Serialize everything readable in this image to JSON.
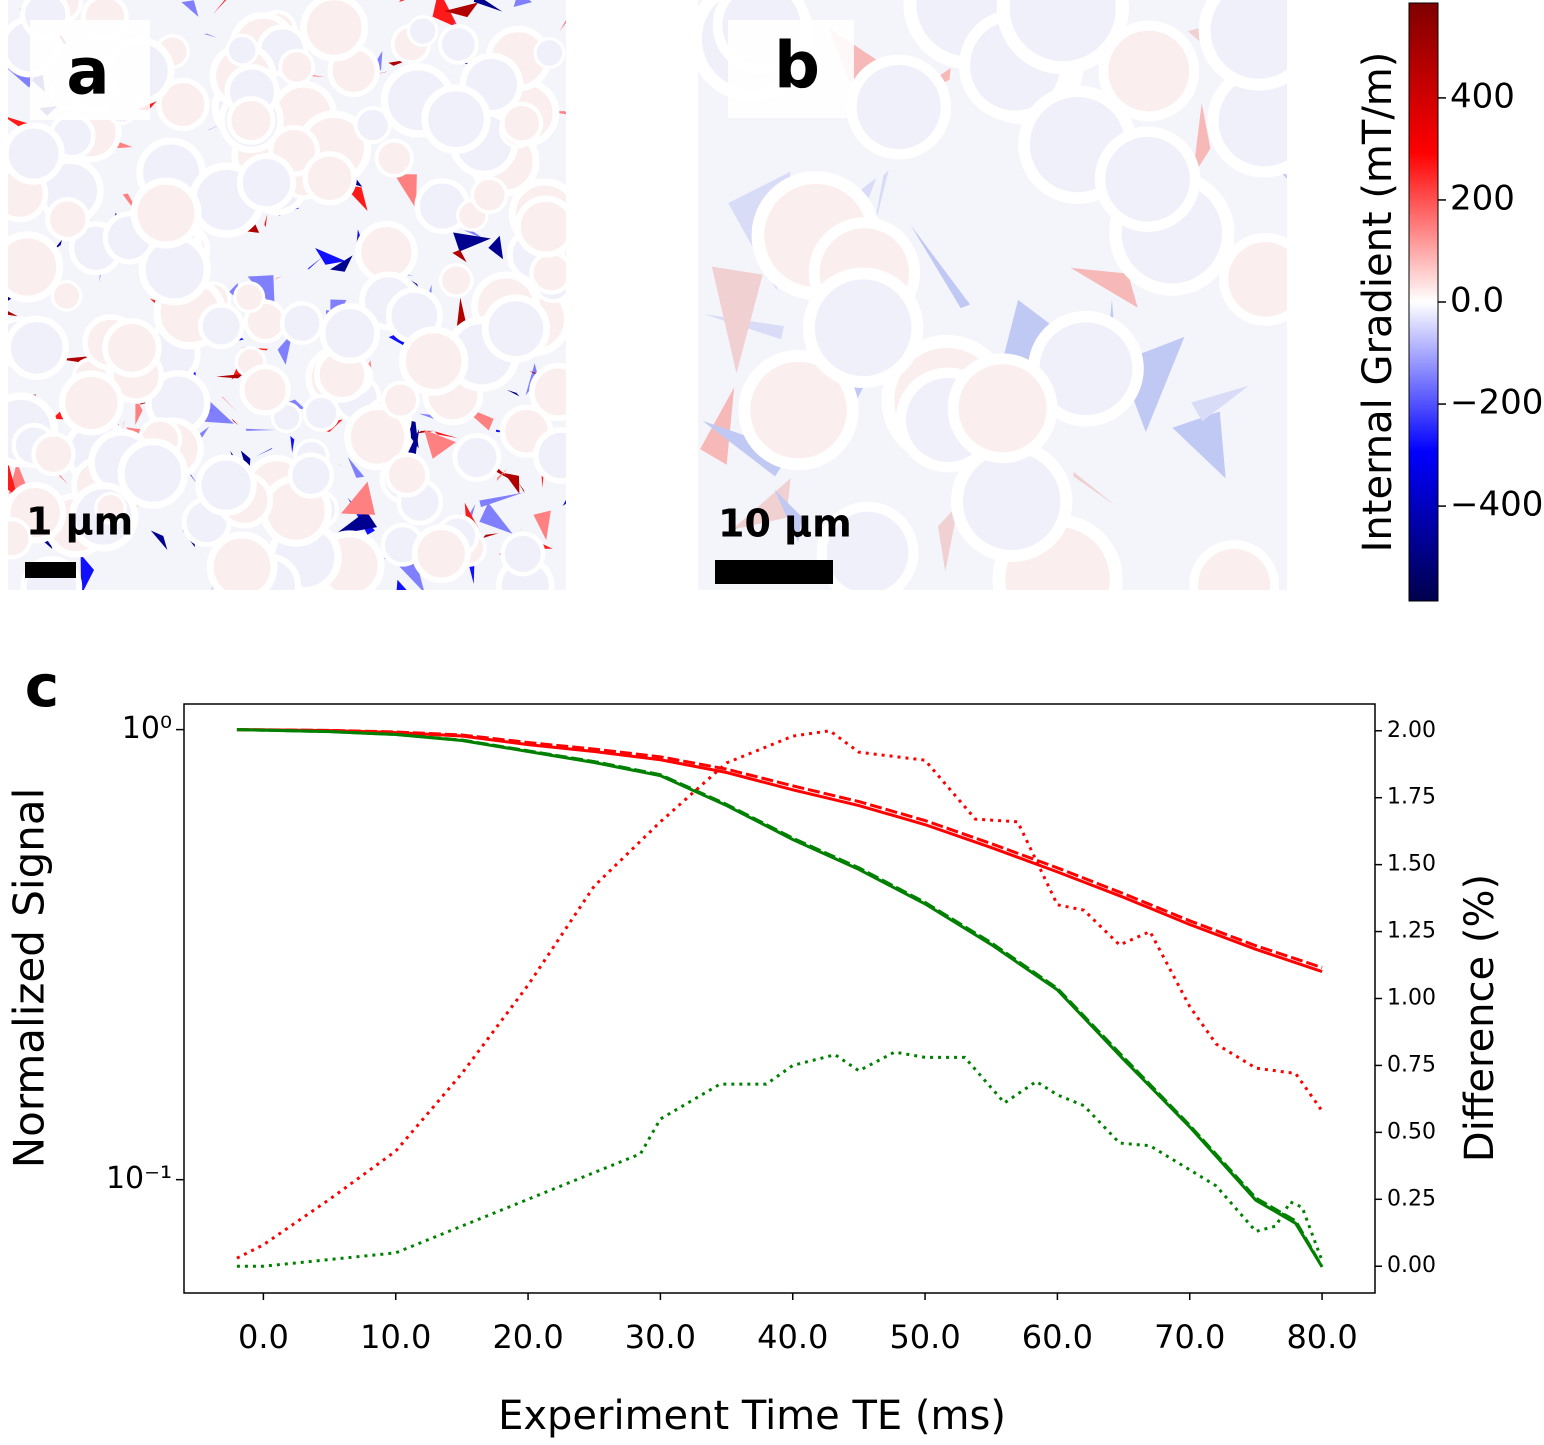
{
  "panels": [
    {
      "label": "a",
      "scale": "1 µm"
    },
    {
      "label": "b",
      "scale": "10 µm"
    }
  ],
  "colorbar": {
    "label": "Internal Gradient (mT/m)",
    "clim": [
      -586,
      586
    ],
    "ticks": [
      {
        "value": 400,
        "label": "400"
      },
      {
        "value": 200,
        "label": "200"
      },
      {
        "value": 0,
        "label": "0.0"
      },
      {
        "value": -200,
        "label": "−200"
      },
      {
        "value": -400,
        "label": "−400"
      }
    ]
  },
  "chart_data": {
    "type": "line",
    "panel_label": "c",
    "xlabel": "Experiment Time TE (ms)",
    "ylabel": "Normalized Signal",
    "y2label": "Difference (%)",
    "xlim": [
      -6,
      84
    ],
    "ylim": [
      0.056,
      1.14
    ],
    "y2lim": [
      -0.1,
      2.1
    ],
    "log_y": true,
    "xticks": [
      {
        "value": 0,
        "label": "0.0"
      },
      {
        "value": 10,
        "label": "10.0"
      },
      {
        "value": 20,
        "label": "20.0"
      },
      {
        "value": 30,
        "label": "30.0"
      },
      {
        "value": 40,
        "label": "40.0"
      },
      {
        "value": 50,
        "label": "50.0"
      },
      {
        "value": 60,
        "label": "60.0"
      },
      {
        "value": 70,
        "label": "70.0"
      },
      {
        "value": 80,
        "label": "80.0"
      }
    ],
    "yticks": [
      {
        "value": 1,
        "label": "10⁰"
      },
      {
        "value": 0.1,
        "label": "10⁻¹"
      }
    ],
    "y2ticks": [
      {
        "value": 0,
        "label": "0.00"
      },
      {
        "value": 0.25,
        "label": "0.25"
      },
      {
        "value": 0.5,
        "label": "0.50"
      },
      {
        "value": 0.75,
        "label": "0.75"
      },
      {
        "value": 1,
        "label": "1.00"
      },
      {
        "value": 1.25,
        "label": "1.25"
      },
      {
        "value": 1.5,
        "label": "1.50"
      },
      {
        "value": 1.75,
        "label": "1.75"
      },
      {
        "value": 2,
        "label": "2.00"
      }
    ],
    "series": [
      {
        "color": "#ff0000",
        "dash": "solid",
        "x": [
          -2,
          5,
          10,
          15,
          20,
          25,
          30,
          35,
          40,
          45,
          50,
          55,
          60,
          65,
          70,
          75,
          80
        ],
        "values": [
          1.0,
          0.995,
          0.985,
          0.968,
          0.926,
          0.894,
          0.857,
          0.803,
          0.735,
          0.678,
          0.615,
          0.547,
          0.483,
          0.424,
          0.369,
          0.325,
          0.29
        ]
      },
      {
        "color": "#ff0000",
        "dash": "dashed",
        "x": [
          -2,
          5,
          10,
          15,
          20,
          25,
          30,
          35,
          40,
          45,
          50,
          55,
          60,
          65,
          70,
          75,
          80
        ],
        "values": [
          1.0,
          0.996,
          0.988,
          0.973,
          0.936,
          0.905,
          0.87,
          0.817,
          0.75,
          0.692,
          0.628,
          0.558,
          0.493,
          0.432,
          0.376,
          0.331,
          0.296
        ]
      },
      {
        "color": "#008000",
        "dash": "solid",
        "x": [
          -2,
          5,
          10,
          15,
          20,
          25,
          30,
          35,
          40,
          45,
          50,
          55,
          60,
          65,
          70,
          75,
          78,
          80
        ],
        "values": [
          1.0,
          0.99,
          0.975,
          0.946,
          0.894,
          0.845,
          0.79,
          0.678,
          0.57,
          0.489,
          0.41,
          0.333,
          0.264,
          0.185,
          0.131,
          0.09,
          0.08,
          0.064
        ]
      },
      {
        "color": "#008000",
        "dash": "dashed",
        "x": [
          -2,
          5,
          10,
          15,
          20,
          25,
          30,
          35,
          40,
          45,
          50,
          55,
          60,
          65,
          70,
          75,
          78,
          80
        ],
        "values": [
          1.0,
          0.99,
          0.976,
          0.948,
          0.897,
          0.849,
          0.794,
          0.682,
          0.574,
          0.493,
          0.413,
          0.336,
          0.266,
          0.187,
          0.132,
          0.091,
          0.081,
          0.064
        ]
      },
      {
        "color": "#ff0000",
        "dash": "dotted",
        "axis": "y2",
        "x": [
          -2,
          0,
          5,
          10,
          15,
          20,
          25,
          30,
          35,
          40,
          42.8,
          45,
          50,
          53.8,
          57,
          60,
          62,
          64.7,
          67,
          70,
          72,
          75,
          78,
          80
        ],
        "values": [
          0.03,
          0.08,
          0.25,
          0.43,
          0.72,
          1.05,
          1.42,
          1.66,
          1.88,
          1.98,
          2.0,
          1.92,
          1.89,
          1.67,
          1.66,
          1.35,
          1.33,
          1.2,
          1.25,
          0.97,
          0.83,
          0.74,
          0.72,
          0.58
        ]
      },
      {
        "color": "#008000",
        "dash": "dotted",
        "axis": "y2",
        "x": [
          -2,
          0,
          10,
          15,
          20,
          25,
          28.5,
          30,
          34.5,
          38,
          40,
          43.2,
          45,
          47.7,
          50,
          53,
          56,
          58.4,
          60,
          62,
          64.7,
          67,
          70,
          72,
          75,
          76.5,
          77.6,
          78.5,
          80
        ],
        "values": [
          0.0,
          0.0,
          0.05,
          0.15,
          0.25,
          0.35,
          0.42,
          0.55,
          0.68,
          0.68,
          0.75,
          0.79,
          0.73,
          0.8,
          0.78,
          0.78,
          0.61,
          0.69,
          0.64,
          0.6,
          0.46,
          0.45,
          0.36,
          0.3,
          0.13,
          0.15,
          0.24,
          0.22,
          0.02
        ]
      }
    ]
  }
}
